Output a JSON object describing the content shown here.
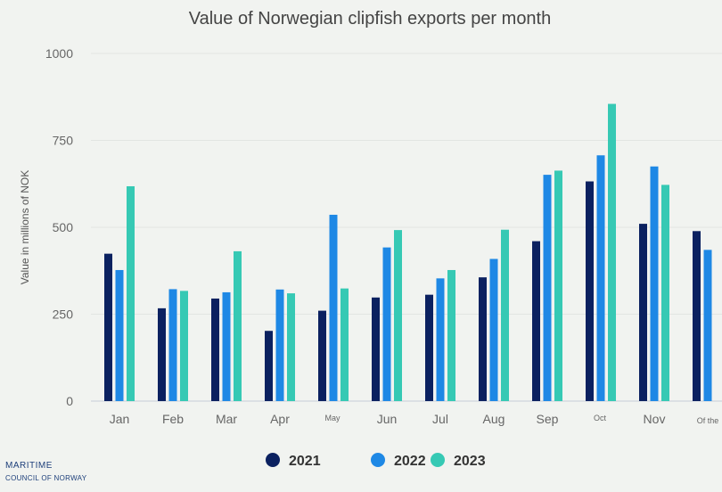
{
  "chart_data": {
    "type": "bar",
    "title": "Value of Norwegian clipfish exports per month",
    "ylabel": "Value in millions of NOK",
    "xlabel": "",
    "ylim": [
      0,
      1000
    ],
    "yticks": [
      0,
      250,
      500,
      750,
      1000
    ],
    "grid": true,
    "legend_position": "bottom-center",
    "categories": [
      "Jan",
      "Feb",
      "Mar",
      "Apr",
      "May",
      "Jun",
      "Jul",
      "Aug",
      "Sep",
      "Oct",
      "Nov",
      "Of the"
    ],
    "series": [
      {
        "name": "2021",
        "color": "#0b2160",
        "values": [
          424,
          267,
          295,
          202,
          260,
          298,
          306,
          356,
          460,
          632,
          510,
          489
        ]
      },
      {
        "name": "2022",
        "color": "#1e88e5",
        "values": [
          377,
          322,
          313,
          321,
          536,
          442,
          353,
          409,
          651,
          707,
          675,
          435
        ]
      },
      {
        "name": "2023",
        "color": "#36c9b4",
        "values": [
          618,
          317,
          431,
          310,
          324,
          492,
          377,
          493,
          663,
          855,
          622,
          null
        ]
      }
    ]
  },
  "branding": {
    "line1": "MARITIME",
    "line2": "COUNCIL OF NORWAY"
  }
}
